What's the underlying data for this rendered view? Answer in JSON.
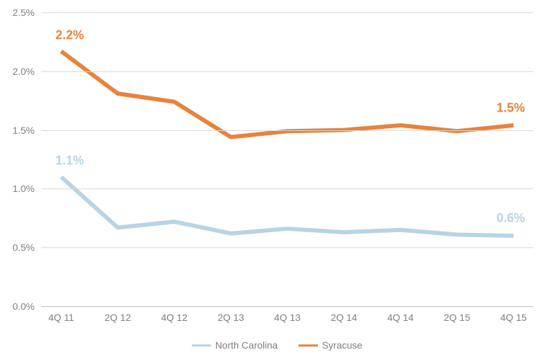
{
  "chart": {
    "type": "line",
    "background_color": "#ffffff",
    "grid_color": "#d9d9d9",
    "axis_color": "#bfbfbf",
    "axis_label_color": "#7f7f7f",
    "axis_fontsize": 14,
    "ylim": [
      0.0,
      2.5
    ],
    "ytick_step": 0.5,
    "yticks": [
      "0.0%",
      "0.5%",
      "1.0%",
      "1.5%",
      "2.0%",
      "2.5%"
    ],
    "categories": [
      "4Q 11",
      "2Q 12",
      "4Q 12",
      "2Q 13",
      "4Q 13",
      "2Q 14",
      "4Q 14",
      "2Q 15",
      "4Q 15"
    ],
    "series": [
      {
        "name": "North Carolina",
        "color": "#b7d4e5",
        "line_width": 3,
        "values": [
          1.1,
          0.67,
          0.72,
          0.62,
          0.66,
          0.63,
          0.65,
          0.61,
          0.6
        ],
        "legend_swatch_width": 3,
        "start_label": {
          "text": "1.1%",
          "fontsize": 18
        },
        "end_label": {
          "text": "0.6%",
          "fontsize": 18
        }
      },
      {
        "name": "Syracuse",
        "color": "#e8833a",
        "line_width": 3,
        "values": [
          2.17,
          1.81,
          1.74,
          1.44,
          1.49,
          1.5,
          1.54,
          1.49,
          1.54
        ],
        "legend_swatch_width": 3,
        "start_label": {
          "text": "2.2%",
          "fontsize": 18
        },
        "end_label": {
          "text": "1.5%",
          "fontsize": 18
        }
      }
    ],
    "legend_fontsize": 14,
    "legend_text_color": "#7f7f7f"
  }
}
